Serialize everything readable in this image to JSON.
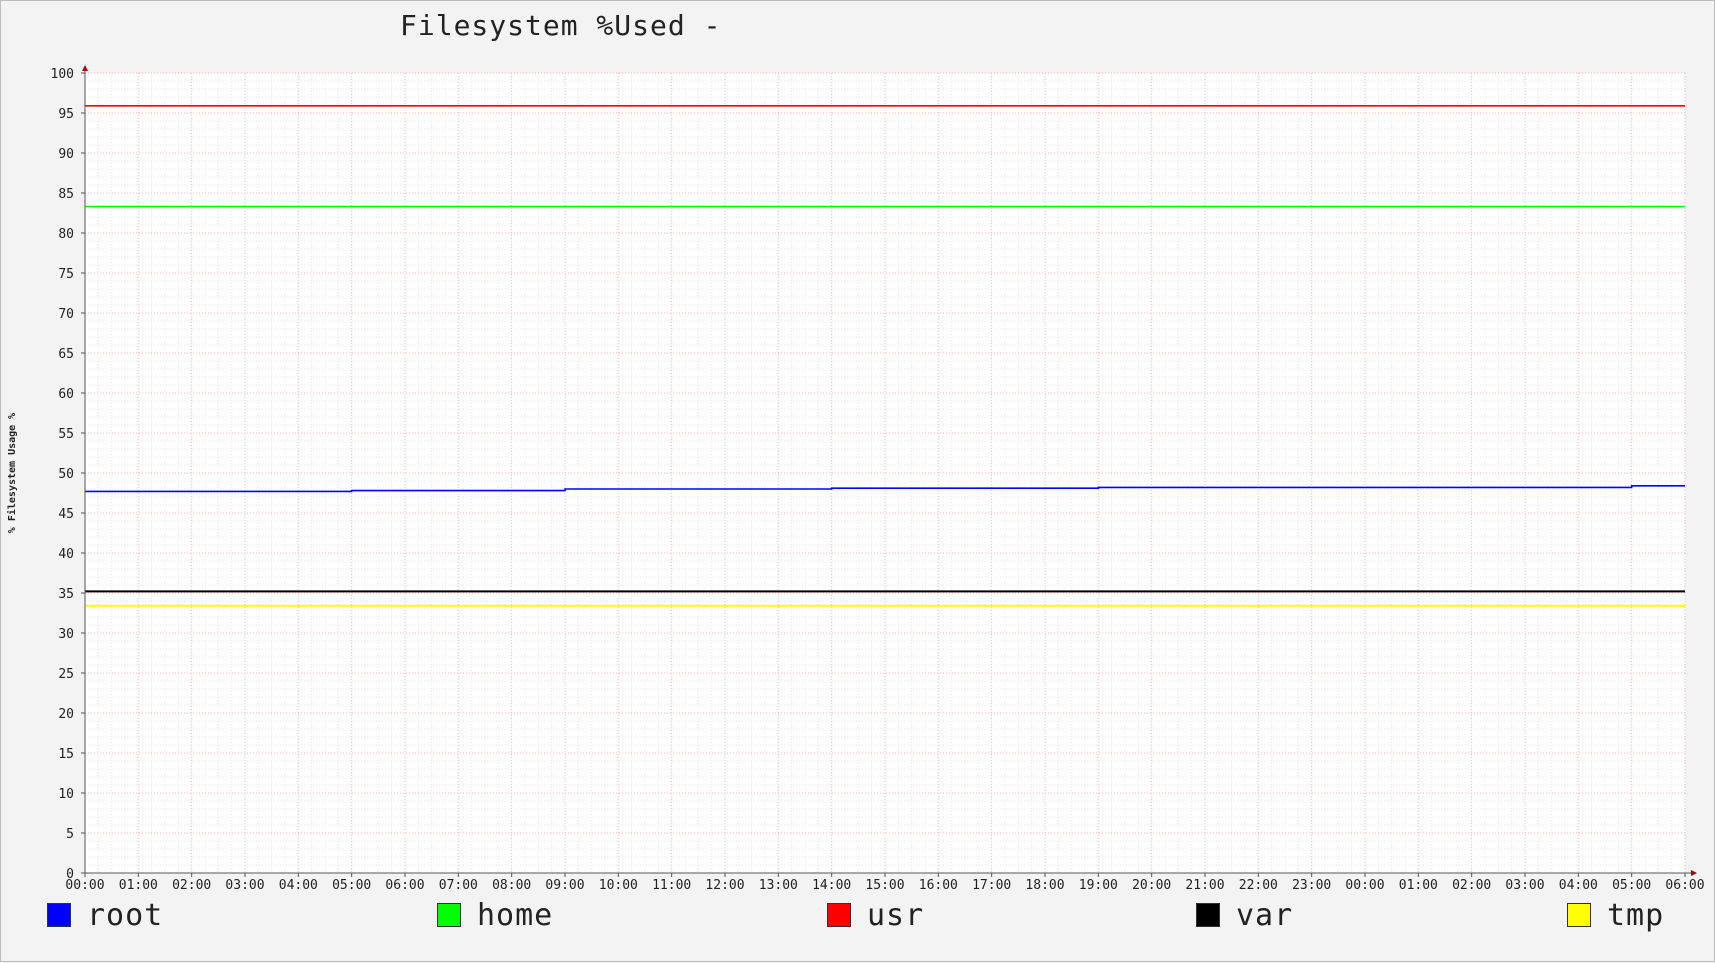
{
  "chart_data": {
    "type": "line",
    "title": "Filesystem %Used -",
    "ylabel": "% Filesystem Usage %",
    "xlabel": "",
    "ylim": [
      0,
      100
    ],
    "yticks": [
      0,
      5,
      10,
      15,
      20,
      25,
      30,
      35,
      40,
      45,
      50,
      55,
      60,
      65,
      70,
      75,
      80,
      85,
      90,
      95,
      100
    ],
    "x": [
      "00:00",
      "01:00",
      "02:00",
      "03:00",
      "04:00",
      "05:00",
      "06:00",
      "07:00",
      "08:00",
      "09:00",
      "10:00",
      "11:00",
      "12:00",
      "13:00",
      "14:00",
      "15:00",
      "16:00",
      "17:00",
      "18:00",
      "19:00",
      "20:00",
      "21:00",
      "22:00",
      "23:00",
      "00:00",
      "01:00",
      "02:00",
      "03:00",
      "04:00",
      "05:00",
      "06:00"
    ],
    "grid": true,
    "legend_position": "bottom",
    "series": [
      {
        "name": "root",
        "color": "#0000ff",
        "values": [
          47.7,
          47.7,
          47.7,
          47.7,
          47.7,
          47.8,
          47.8,
          47.8,
          47.8,
          48.0,
          48.0,
          48.0,
          48.0,
          48.0,
          48.1,
          48.1,
          48.1,
          48.1,
          48.1,
          48.2,
          48.2,
          48.2,
          48.2,
          48.2,
          48.2,
          48.2,
          48.2,
          48.2,
          48.2,
          48.4,
          48.4
        ]
      },
      {
        "name": "home",
        "color": "#00ff00",
        "values": [
          83.3,
          83.3,
          83.3,
          83.3,
          83.3,
          83.3,
          83.3,
          83.3,
          83.3,
          83.3,
          83.3,
          83.3,
          83.3,
          83.3,
          83.3,
          83.3,
          83.3,
          83.3,
          83.3,
          83.3,
          83.3,
          83.3,
          83.3,
          83.3,
          83.3,
          83.3,
          83.3,
          83.3,
          83.3,
          83.3,
          83.3
        ]
      },
      {
        "name": "usr",
        "color": "#ff0000",
        "values": [
          95.9,
          95.9,
          95.9,
          95.9,
          95.9,
          95.9,
          95.9,
          95.9,
          95.9,
          95.9,
          95.9,
          95.9,
          95.9,
          95.9,
          95.9,
          95.9,
          95.9,
          95.9,
          95.9,
          95.9,
          95.9,
          95.9,
          95.9,
          95.9,
          95.9,
          95.9,
          95.9,
          95.9,
          95.9,
          95.9,
          95.9
        ]
      },
      {
        "name": "var",
        "color": "#000000",
        "values": [
          35.2,
          35.2,
          35.2,
          35.2,
          35.2,
          35.2,
          35.2,
          35.2,
          35.2,
          35.2,
          35.2,
          35.2,
          35.2,
          35.2,
          35.2,
          35.2,
          35.2,
          35.2,
          35.2,
          35.2,
          35.2,
          35.2,
          35.2,
          35.2,
          35.2,
          35.2,
          35.2,
          35.2,
          35.2,
          35.2,
          35.2
        ]
      },
      {
        "name": "tmp",
        "color": "#ffff00",
        "values": [
          33.4,
          33.4,
          33.4,
          33.4,
          33.4,
          33.4,
          33.4,
          33.4,
          33.4,
          33.4,
          33.4,
          33.4,
          33.4,
          33.4,
          33.4,
          33.4,
          33.4,
          33.4,
          33.4,
          33.4,
          33.4,
          33.4,
          33.4,
          33.4,
          33.4,
          33.4,
          33.4,
          33.4,
          33.4,
          33.4,
          33.4
        ]
      }
    ]
  },
  "colors": {
    "background": "#f3f3f3",
    "plot_background": "#ffffff",
    "major_grid": "#ffb0b0",
    "minor_grid": "#e4e4e4",
    "axis": "#555555",
    "axis_arrow": "#aa0000"
  }
}
